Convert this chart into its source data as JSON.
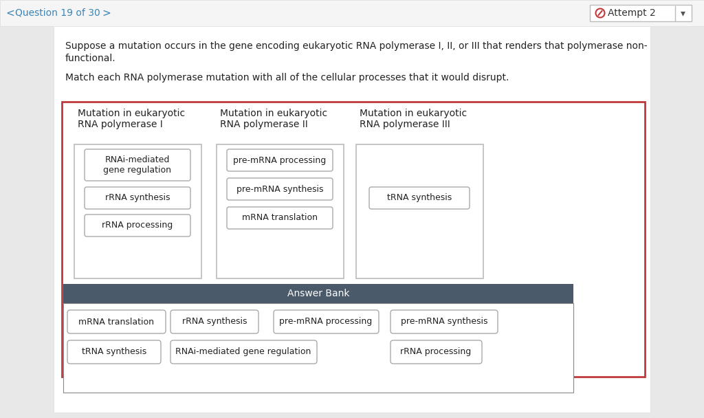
{
  "bg_color": "#e8e8e8",
  "nav_text": "Question 19 of 30",
  "attempt_text": "Attempt 2",
  "header_line1": "Suppose a mutation occurs in the gene encoding eukaryotic RNA polymerase I, II, or III that renders that polymerase non-",
  "header_line2": "functional.",
  "subheader": "Match each RNA polymerase mutation with all of the cellular processes that it would disrupt.",
  "col_headers": [
    "Mutation in eukaryotic\nRNA polymerase I",
    "Mutation in eukaryotic\nRNA polymerase II",
    "Mutation in eukaryotic\nRNA polymerase III"
  ],
  "col1_items": [
    "RNAi-mediated\ngene regulation",
    "rRNA synthesis",
    "rRNA processing"
  ],
  "col2_items": [
    "pre-mRNA processing",
    "pre-mRNA synthesis",
    "mRNA translation"
  ],
  "col3_items": [
    "tRNA synthesis"
  ],
  "ab_row1": [
    "mRNA translation",
    "rRNA synthesis",
    "pre-mRNA processing",
    "pre-mRNA synthesis"
  ],
  "ab_row2": [
    "tRNA synthesis",
    "RNAi-mediated gene regulation",
    "rRNA processing"
  ],
  "main_box_border": "#c0393b",
  "ab_header_bg": "#4a5a6a",
  "ab_header_fg": "#ffffff",
  "item_edge": "#aaaaaa",
  "col_drop_edge": "#bbbbbb",
  "text_color": "#222222",
  "nav_color": "#3a85b8",
  "attempt_color": "#c0393b",
  "white": "#ffffff",
  "page_bg": "#ffffff",
  "nav_bar_bg": "#f5f5f5"
}
